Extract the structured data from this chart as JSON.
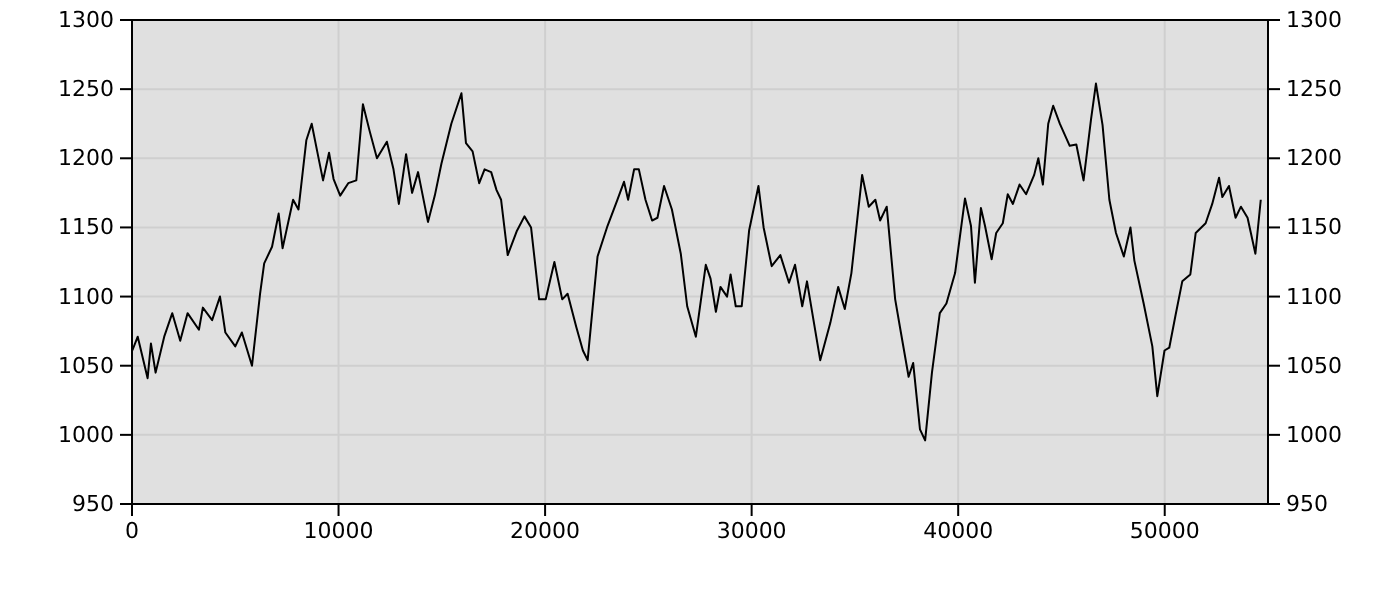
{
  "chart_data": {
    "type": "line",
    "xlim": [
      0,
      55000
    ],
    "xticks": [
      0,
      10000,
      20000,
      30000,
      40000,
      50000
    ],
    "ylim": [
      950,
      1300
    ],
    "yticks": [
      950,
      1000,
      1050,
      1100,
      1150,
      1200,
      1250,
      1300
    ],
    "y2lim": [
      950,
      1300
    ],
    "y2ticks": [
      950,
      1000,
      1050,
      1100,
      1150,
      1200,
      1250,
      1300
    ],
    "grid": true,
    "marker": "none",
    "line_style": "solid",
    "series": [
      {
        "color": "#000000",
        "x": [
          16,
          277,
          756,
          917,
          1143,
          1560,
          1950,
          2335,
          2690,
          3240,
          3430,
          3880,
          4260,
          4520,
          5000,
          5320,
          5810,
          6200,
          6400,
          6780,
          7100,
          7290,
          7800,
          8060,
          8440,
          8700,
          9020,
          9250,
          9540,
          9760,
          10080,
          10470,
          10860,
          11180,
          11500,
          11860,
          12340,
          12660,
          12920,
          13270,
          13560,
          13850,
          14330,
          14660,
          14980,
          15460,
          15950,
          16170,
          16490,
          16810,
          17070,
          17390,
          17650,
          17870,
          18190,
          18620,
          19000,
          19320,
          19710,
          20030,
          20450,
          20830,
          21090,
          21510,
          21830,
          22060,
          22540,
          23020,
          23500,
          23820,
          24020,
          24310,
          24540,
          24860,
          25180,
          25440,
          25760,
          26140,
          26570,
          26880,
          27300,
          27780,
          28010,
          28270,
          28490,
          28810,
          28980,
          29230,
          29520,
          29880,
          30330,
          30580,
          30970,
          31390,
          31810,
          32100,
          32450,
          32680,
          33320,
          33810,
          34190,
          34510,
          34830,
          35350,
          35670,
          35990,
          36220,
          36540,
          36950,
          37180,
          37600,
          37820,
          38150,
          38400,
          38730,
          39110,
          39430,
          39850,
          40330,
          40620,
          40810,
          41100,
          41300,
          41620,
          41840,
          42160,
          42400,
          42650,
          42970,
          43290,
          43680,
          43880,
          44100,
          44360,
          44600,
          44920,
          45400,
          45720,
          46070,
          46430,
          46670,
          46990,
          47320,
          47640,
          48020,
          48340,
          48530,
          48980,
          49400,
          49640,
          49990,
          50220,
          50530,
          50850,
          51240,
          51500,
          51980,
          52300,
          52630,
          52790,
          53110,
          53430,
          53690,
          54010,
          54390,
          54650
        ],
        "values": [
          1061,
          1071,
          1041,
          1066,
          1045,
          1071,
          1088,
          1068,
          1088,
          1076,
          1092,
          1083,
          1100,
          1074,
          1064,
          1074,
          1050,
          1102,
          1124,
          1136,
          1160,
          1135,
          1170,
          1163,
          1213,
          1225,
          1201,
          1184,
          1204,
          1185,
          1173,
          1182,
          1184,
          1239,
          1220,
          1200,
          1212,
          1192,
          1167,
          1203,
          1175,
          1190,
          1154,
          1173,
          1196,
          1225,
          1247,
          1211,
          1205,
          1182,
          1192,
          1190,
          1177,
          1170,
          1130,
          1147,
          1158,
          1150,
          1098,
          1098,
          1125,
          1098,
          1102,
          1078,
          1061,
          1054,
          1129,
          1151,
          1170,
          1183,
          1170,
          1192,
          1192,
          1170,
          1155,
          1157,
          1180,
          1163,
          1131,
          1093,
          1071,
          1123,
          1113,
          1089,
          1107,
          1100,
          1116,
          1093,
          1093,
          1148,
          1180,
          1150,
          1122,
          1130,
          1110,
          1123,
          1093,
          1111,
          1054,
          1081,
          1107,
          1091,
          1117,
          1188,
          1165,
          1170,
          1155,
          1165,
          1098,
          1078,
          1042,
          1052,
          1004,
          996,
          1045,
          1088,
          1095,
          1117,
          1171,
          1151,
          1110,
          1164,
          1151,
          1127,
          1146,
          1153,
          1174,
          1167,
          1181,
          1174,
          1188,
          1200,
          1181,
          1225,
          1238,
          1225,
          1209,
          1210,
          1184,
          1228,
          1254,
          1224,
          1170,
          1146,
          1129,
          1150,
          1126,
          1095,
          1064,
          1028,
          1061,
          1063,
          1087,
          1111,
          1116,
          1146,
          1153,
          1167,
          1186,
          1172,
          1180,
          1157,
          1165,
          1157,
          1131,
          1170
        ]
      }
    ]
  }
}
